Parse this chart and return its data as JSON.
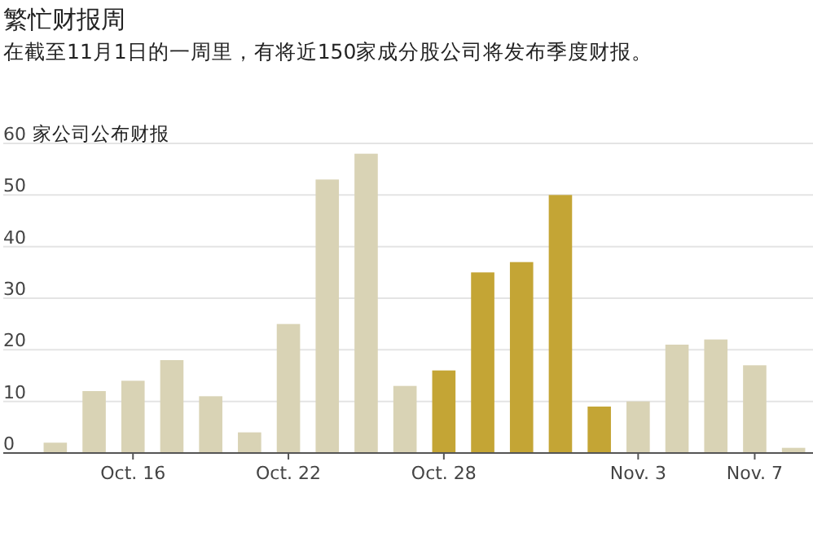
{
  "chart_data": {
    "type": "bar",
    "title": "繁忙财报周",
    "subtitle": "在截至11月1日的一周里，有将近150家成分股公司将发布季度财报。",
    "ylabel": "家公司公布财报",
    "categories": [
      null,
      null,
      "Oct. 16",
      null,
      null,
      null,
      "Oct. 22",
      null,
      null,
      null,
      "Oct. 28",
      null,
      null,
      null,
      null,
      "Nov. 3",
      null,
      null,
      "Nov. 7",
      null
    ],
    "values": [
      2,
      12,
      14,
      18,
      11,
      4,
      25,
      53,
      58,
      13,
      16,
      35,
      37,
      50,
      9,
      10,
      21,
      22,
      17,
      1
    ],
    "colors": [
      "#d9d3b5",
      "#d9d3b5",
      "#d9d3b5",
      "#d9d3b5",
      "#d9d3b5",
      "#d9d3b5",
      "#d9d3b5",
      "#d9d3b5",
      "#d9d3b5",
      "#d9d3b5",
      "#c4a535",
      "#c4a535",
      "#c4a535",
      "#c4a535",
      "#c4a535",
      "#d9d3b5",
      "#d9d3b5",
      "#d9d3b5",
      "#d9d3b5",
      "#d9d3b5"
    ],
    "ylim": [
      0,
      60
    ],
    "yticks": [
      0,
      10,
      20,
      30,
      40,
      50,
      60
    ],
    "grid": "y"
  }
}
